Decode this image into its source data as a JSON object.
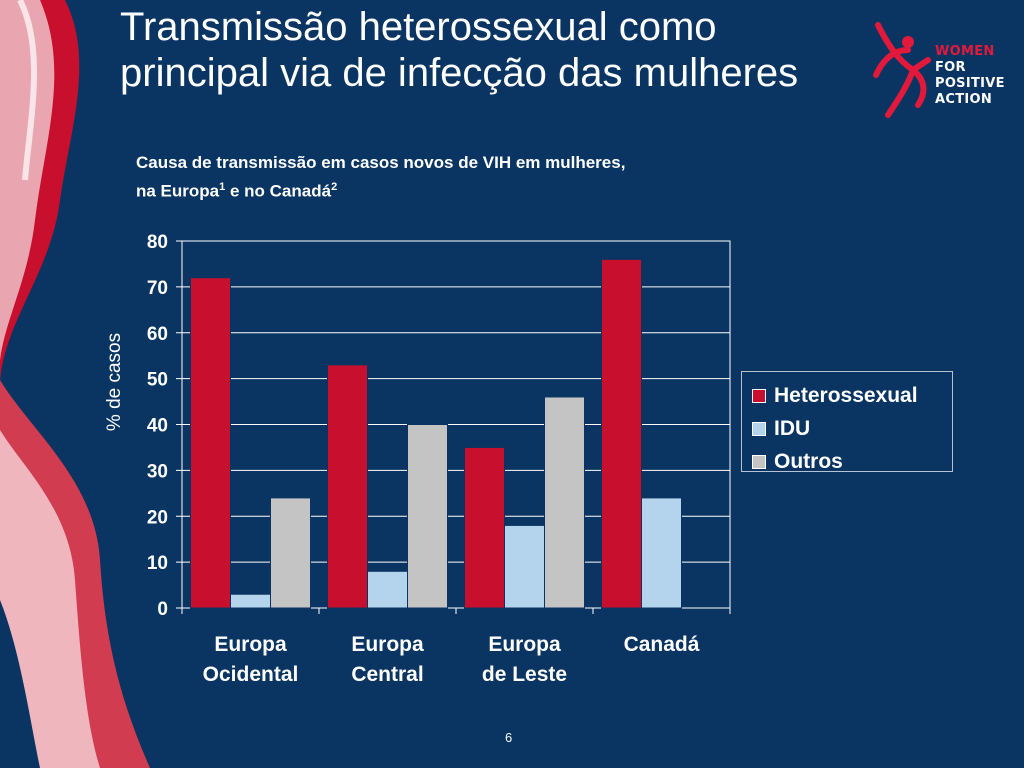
{
  "slide": {
    "title_line1": "Transmissão heterossexual como",
    "title_line2": "principal via de infecção das mulheres",
    "page_number": "6"
  },
  "logo": {
    "line1": "WOMEN",
    "line2": "FOR",
    "line3": "POSITIVE",
    "line4": "ACTION",
    "accent_color": "#e3193b"
  },
  "chart_title": {
    "line1": "Causa de transmissão em casos novos de VIH em mulheres,",
    "line2_prefix": "na Europa",
    "sup1": "1",
    "line2_mid": " e no Canadá",
    "sup2": "2"
  },
  "chart_data": {
    "type": "bar",
    "categories": [
      [
        "Europa",
        "Ocidental"
      ],
      [
        "Europa",
        "Central"
      ],
      [
        "Europa",
        "de Leste"
      ],
      [
        "Canadá"
      ]
    ],
    "series": [
      {
        "name": "Heterossexual",
        "color": "#c8102e",
        "values": [
          72,
          53,
          35,
          76
        ]
      },
      {
        "name": "IDU",
        "color": "#b3d4ec",
        "values": [
          3,
          8,
          18,
          24
        ]
      },
      {
        "name": "Outros",
        "color": "#c4c4c4",
        "values": [
          24,
          40,
          46,
          null
        ]
      }
    ],
    "ylabel": "% de casos",
    "xlabel": "",
    "ylim": [
      0,
      80
    ],
    "yticks": [
      0,
      10,
      20,
      30,
      40,
      50,
      60,
      70,
      80
    ],
    "grid": true,
    "legend_position": "right"
  }
}
